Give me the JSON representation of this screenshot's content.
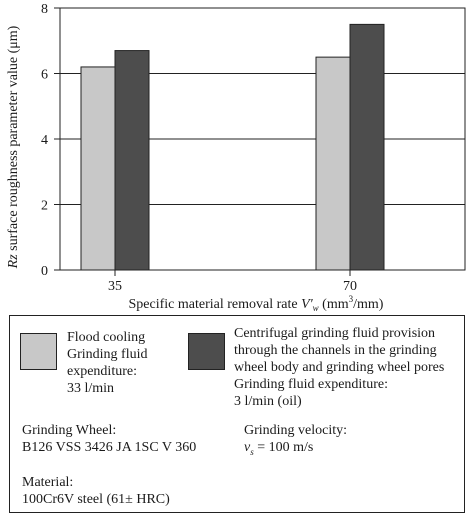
{
  "chart_data": {
    "type": "bar",
    "categories": [
      "35",
      "70"
    ],
    "series": [
      {
        "values": [
          6.2,
          6.5
        ],
        "color": "#c8c8c8"
      },
      {
        "values": [
          6.7,
          7.5
        ],
        "color": "#4d4d4d"
      }
    ],
    "xlabel_pre": "Specific material removal rate ",
    "xlabel_var": "V'",
    "xlabel_sub": "w",
    "xlabel_unit_a": " (mm",
    "xlabel_unit_sup": "3",
    "xlabel_unit_b": "/mm)",
    "ylabel_var": "Rz",
    "ylabel_rest": " surface roughness parameter value (μm)",
    "ylim": [
      0,
      8
    ],
    "yticks": [
      0,
      2,
      4,
      6,
      8
    ],
    "grid": "horizontal"
  },
  "legend": {
    "flood": {
      "line1": "Flood cooling",
      "line2": "Grinding fluid",
      "line3": "expenditure:",
      "line4": "33 l/min",
      "color": "#c8c8c8"
    },
    "centrifugal": {
      "line1": "Centrifugal grinding fluid provision",
      "line2": "through the channels in the grinding",
      "line3": "wheel body and grinding wheel pores",
      "line4": "Grinding fluid expenditure:",
      "line5": "3 l/min (oil)",
      "color": "#4d4d4d"
    }
  },
  "info": {
    "wheel_label": "Grinding Wheel:",
    "wheel_value": "B126 VSS 3426 JA 1SC V 360",
    "velocity_label": "Grinding velocity:",
    "velocity_var": "v",
    "velocity_sub": "s",
    "velocity_value": " = 100 m/s",
    "material_label": "Material:",
    "material_value": "100Cr6V steel (61± HRC)"
  }
}
